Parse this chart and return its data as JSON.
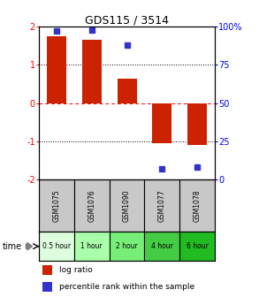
{
  "title": "GDS115 / 3514",
  "samples": [
    "GSM1075",
    "GSM1076",
    "GSM1090",
    "GSM1077",
    "GSM1078"
  ],
  "time_labels": [
    "0.5 hour",
    "1 hour",
    "2 hour",
    "4 hour",
    "6 hour"
  ],
  "log_ratios": [
    1.75,
    1.65,
    0.65,
    -1.05,
    -1.1
  ],
  "percentile_ranks": [
    97,
    98,
    88,
    7,
    8
  ],
  "bar_color": "#cc2200",
  "dot_color": "#3333cc",
  "ylim": [
    -2,
    2
  ],
  "yticks_left": [
    -2,
    -1,
    0,
    1,
    2
  ],
  "bg_color": "#ffffff",
  "bar_width": 0.55,
  "legend_log_label": "log ratio",
  "legend_pct_label": "percentile rank within the sample",
  "sample_bg": "#c8c8c8",
  "time_bg_colors": [
    "#ddffdd",
    "#aaffaa",
    "#77ee77",
    "#44cc44",
    "#22bb22"
  ]
}
